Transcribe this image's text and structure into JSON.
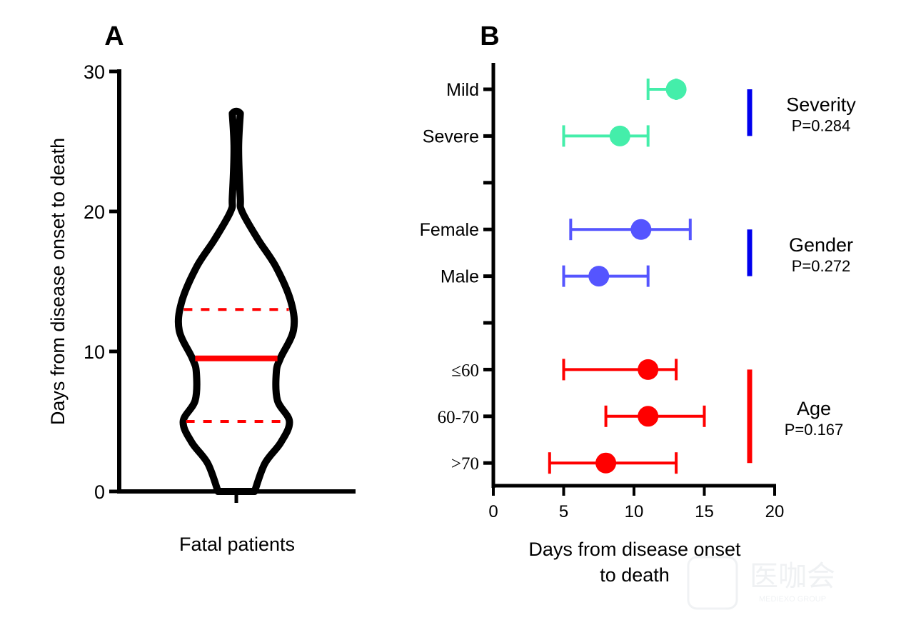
{
  "chart_data": [
    {
      "panel": "A",
      "type": "violin",
      "panel_label": "A",
      "xlabel": "Fatal patients",
      "ylabel": "Days from disease onset to death",
      "ylim": [
        0,
        30
      ],
      "yticks": [
        "0",
        "10",
        "20",
        "30"
      ],
      "ytick_values": [
        0,
        10,
        20,
        30
      ],
      "categories": [
        "Fatal patients"
      ],
      "summary": {
        "min": 0,
        "q1": 5,
        "median": 9.5,
        "q3": 13,
        "max": 27
      },
      "density_profile": [
        {
          "y": 0,
          "w": 0.32
        },
        {
          "y": 2,
          "w": 0.5
        },
        {
          "y": 3.5,
          "w": 0.78
        },
        {
          "y": 5,
          "w": 0.93
        },
        {
          "y": 6.5,
          "w": 0.72
        },
        {
          "y": 8.5,
          "w": 0.7
        },
        {
          "y": 9.5,
          "w": 0.77
        },
        {
          "y": 11.5,
          "w": 1.0
        },
        {
          "y": 13.5,
          "w": 0.96
        },
        {
          "y": 16,
          "w": 0.7
        },
        {
          "y": 18,
          "w": 0.38
        },
        {
          "y": 20,
          "w": 0.1
        },
        {
          "y": 21,
          "w": 0.07
        },
        {
          "y": 24.5,
          "w": 0.04
        },
        {
          "y": 27,
          "w": 0.07
        }
      ],
      "colors": {
        "outline": "#000000",
        "median": "#ff0000",
        "quartiles": "#ff0000"
      }
    },
    {
      "panel": "B",
      "type": "forest",
      "panel_label": "B",
      "xlabel": [
        "Days from disease onset",
        "to death"
      ],
      "xlim": [
        0,
        20
      ],
      "xticks": [
        "0",
        "5",
        "10",
        "15",
        "20"
      ],
      "xtick_values": [
        0,
        5,
        10,
        15,
        20
      ],
      "rows": [
        {
          "label": "Mild",
          "group": "Severity",
          "median": 13,
          "low": 11,
          "high": 13,
          "color": "#44eeaa"
        },
        {
          "label": "Severe",
          "group": "Severity",
          "median": 9,
          "low": 5,
          "high": 11,
          "color": "#44eeaa"
        },
        {
          "label": "",
          "group": "spacer"
        },
        {
          "label": "Female",
          "group": "Gender",
          "median": 10.5,
          "low": 5.5,
          "high": 14,
          "color": "#5555ff"
        },
        {
          "label": "Male",
          "group": "Gender",
          "median": 7.5,
          "low": 5,
          "high": 11,
          "color": "#5555ff"
        },
        {
          "label": "",
          "group": "spacer"
        },
        {
          "label": "≤60",
          "group": "Age",
          "median": 11,
          "low": 5,
          "high": 13,
          "color": "#ff0000"
        },
        {
          "label": "60-70",
          "group": "Age",
          "median": 11,
          "low": 8,
          "high": 15,
          "color": "#ff0000"
        },
        {
          "label": ">70",
          "group": "Age",
          "median": 8,
          "low": 4,
          "high": 13,
          "color": "#ff0000"
        }
      ],
      "groups": [
        {
          "name": "Severity",
          "p": "P=0.284",
          "bar_color": "#0000ee",
          "rows": [
            0,
            1
          ]
        },
        {
          "name": "Gender",
          "p": "P=0.272",
          "bar_color": "#0000ee",
          "rows": [
            3,
            4
          ]
        },
        {
          "name": "Age",
          "p": "P=0.167",
          "bar_color": "#ff0000",
          "rows": [
            6,
            8
          ]
        }
      ]
    }
  ],
  "watermark": {
    "text": "医咖会",
    "subtext": "MEDIEXO GROUP"
  }
}
